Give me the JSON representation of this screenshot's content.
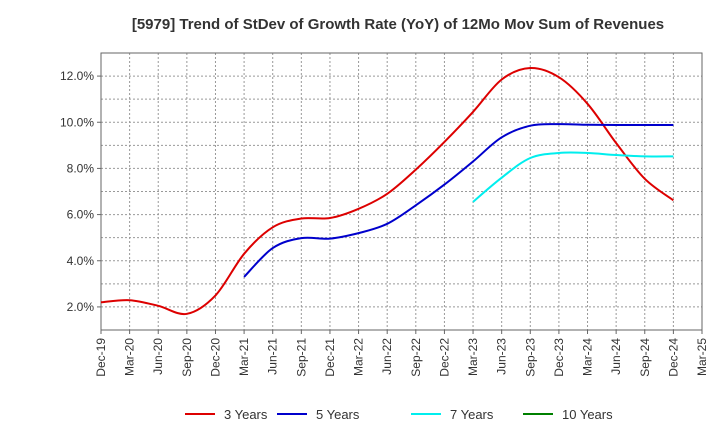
{
  "chart_data": {
    "type": "line",
    "title": "[5979]  Trend of StDev of Growth Rate (YoY) of 12Mo Mov Sum of Revenues",
    "xlabel": "",
    "ylabel": "",
    "ylim": [
      1.0,
      13.0
    ],
    "yticks": [
      2.0,
      4.0,
      6.0,
      8.0,
      10.0,
      12.0
    ],
    "ytick_labels": [
      "2.0%",
      "4.0%",
      "6.0%",
      "8.0%",
      "10.0%",
      "12.0%"
    ],
    "grid": true,
    "legend_position": "bottom",
    "categories": [
      "Dec-19",
      "Mar-20",
      "Jun-20",
      "Sep-20",
      "Dec-20",
      "Mar-21",
      "Jun-21",
      "Sep-21",
      "Dec-21",
      "Mar-22",
      "Jun-22",
      "Sep-22",
      "Dec-22",
      "Mar-23",
      "Jun-23",
      "Sep-23",
      "Dec-23",
      "Mar-24",
      "Jun-24",
      "Sep-24",
      "Dec-24",
      "Mar-25"
    ],
    "series": [
      {
        "name": "3 Years",
        "color": "#dd0000",
        "values": [
          2.2,
          2.29,
          2.05,
          1.7,
          2.5,
          4.3,
          5.45,
          5.83,
          5.85,
          6.25,
          6.9,
          7.95,
          9.15,
          10.45,
          11.85,
          12.35,
          11.95,
          10.8,
          9.1,
          7.55,
          6.62,
          null
        ]
      },
      {
        "name": "5 Years",
        "color": "#0000cc",
        "values": [
          null,
          null,
          null,
          null,
          null,
          3.3,
          4.55,
          4.98,
          4.96,
          5.2,
          5.6,
          6.4,
          7.3,
          8.3,
          9.35,
          9.85,
          9.92,
          9.89,
          9.88,
          9.88,
          9.88,
          null
        ]
      },
      {
        "name": "7 Years",
        "color": "#00eeee",
        "values": [
          null,
          null,
          null,
          null,
          null,
          null,
          null,
          null,
          null,
          null,
          null,
          null,
          null,
          6.55,
          7.6,
          8.45,
          8.67,
          8.67,
          8.58,
          8.52,
          8.52,
          null
        ]
      },
      {
        "name": "10 Years",
        "color": "#008000",
        "values": [
          null,
          null,
          null,
          null,
          null,
          null,
          null,
          null,
          null,
          null,
          null,
          null,
          null,
          null,
          null,
          null,
          null,
          null,
          null,
          null,
          null,
          null
        ]
      }
    ]
  }
}
